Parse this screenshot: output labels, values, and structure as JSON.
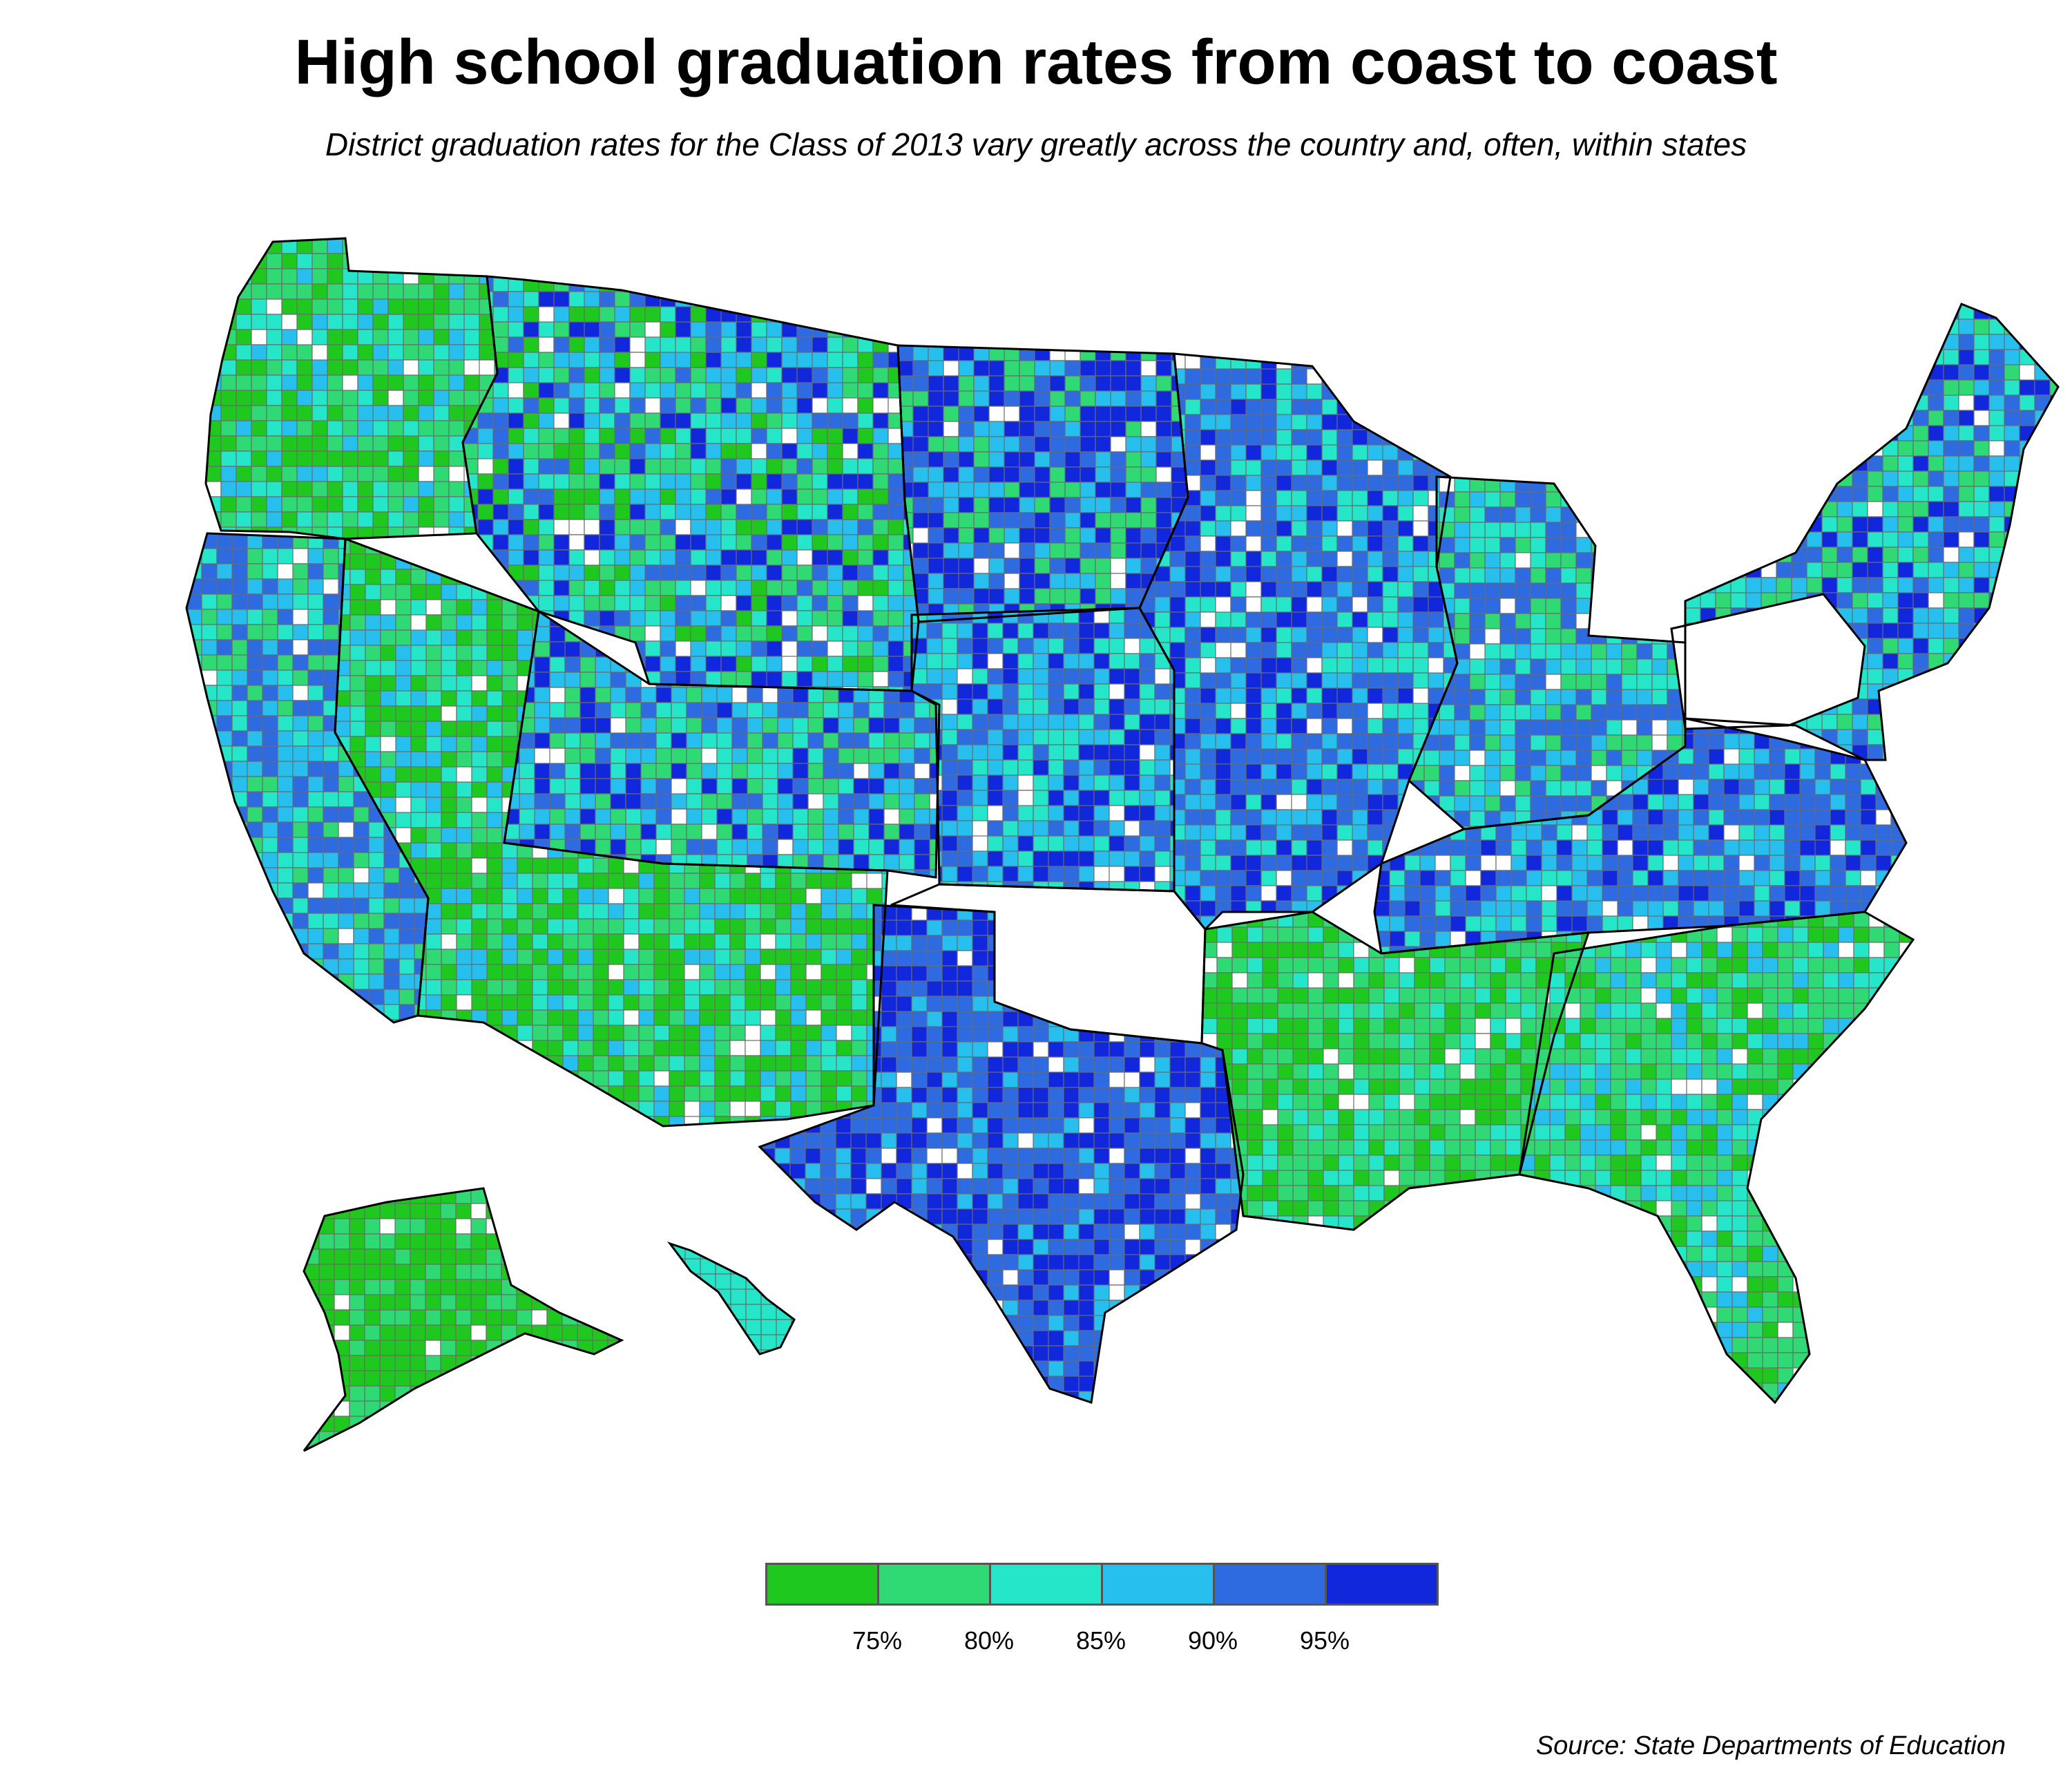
{
  "title": "High school graduation rates from coast to coast",
  "subtitle": "District graduation rates for the Class of 2013 vary greatly across the country and, often, within states",
  "source": "Source: State Departments of Education",
  "legend": {
    "bins": [
      {
        "color": "#1ec81e"
      },
      {
        "color": "#2fd974"
      },
      {
        "color": "#25e6c8"
      },
      {
        "color": "#27c0ee"
      },
      {
        "color": "#2f6be0"
      },
      {
        "color": "#1027dc"
      }
    ],
    "ticks": [
      "75%",
      "80%",
      "85%",
      "90%",
      "95%"
    ]
  },
  "colors": {
    "no_data": "#ffffff",
    "district_border": "#6b6b6b",
    "state_border": "#000000"
  },
  "regions": [
    {
      "name": "washington-oregon",
      "palette": [
        0,
        1,
        2,
        3,
        1,
        0
      ]
    },
    {
      "name": "california",
      "palette": [
        2,
        3,
        4,
        1,
        4
      ]
    },
    {
      "name": "nevada-arizona-new-mexico",
      "palette": [
        0,
        0,
        1,
        2,
        3
      ]
    },
    {
      "name": "idaho-montana-wyoming",
      "palette": [
        0,
        2,
        3,
        4,
        5,
        1
      ]
    },
    {
      "name": "utah-colorado",
      "palette": [
        1,
        2,
        3,
        4,
        5
      ]
    },
    {
      "name": "dakotas",
      "palette": [
        3,
        4,
        5,
        5,
        1
      ]
    },
    {
      "name": "nebraska-kansas",
      "palette": [
        3,
        4,
        5,
        2
      ]
    },
    {
      "name": "texas",
      "palette": [
        4,
        5,
        4,
        3,
        5
      ]
    },
    {
      "name": "oklahoma",
      "palette": []
    },
    {
      "name": "midwest",
      "palette": [
        3,
        4,
        5,
        4,
        2
      ]
    },
    {
      "name": "great-lakes",
      "palette": [
        2,
        3,
        4,
        1,
        4
      ]
    },
    {
      "name": "south",
      "palette": [
        0,
        1,
        2,
        1,
        0
      ]
    },
    {
      "name": "appalachia",
      "palette": [
        3,
        4,
        4,
        5,
        2
      ]
    },
    {
      "name": "southeast",
      "palette": [
        1,
        2,
        1,
        3,
        0
      ]
    },
    {
      "name": "northeast",
      "palette": [
        2,
        3,
        4,
        1,
        5
      ]
    },
    {
      "name": "pennsylvania",
      "palette": []
    },
    {
      "name": "alaska",
      "palette": [
        0,
        0,
        1
      ]
    },
    {
      "name": "hawaii",
      "palette": [
        2
      ]
    }
  ]
}
